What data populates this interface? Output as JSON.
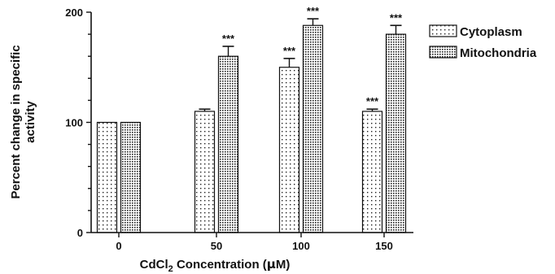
{
  "chart_data": {
    "type": "bar",
    "categories": [
      "0",
      "50",
      "100",
      "150"
    ],
    "series": [
      {
        "name": "Cytoplasm",
        "values": [
          100,
          110,
          150,
          110
        ],
        "errors": [
          0,
          2,
          8,
          2
        ],
        "significance": [
          "",
          "",
          "***",
          "***"
        ]
      },
      {
        "name": "Mitochondria",
        "values": [
          100,
          160,
          188,
          180
        ],
        "errors": [
          0,
          9,
          6,
          8
        ],
        "significance": [
          "",
          "***",
          "***",
          "***"
        ]
      }
    ],
    "ylabel_line1": "Percent change in specific",
    "ylabel_line2": "activity",
    "xlabel_main": "CdCl",
    "xlabel_sub": "2",
    "xlabel_rest": " Concentration (",
    "xlabel_mu": "μ",
    "xlabel_end": "M)",
    "ylim": [
      0,
      200
    ],
    "yticks": [
      0,
      100,
      200
    ],
    "legend_position": "top-right",
    "grid": false,
    "patterns": [
      "sparse-dots",
      "dense-dots"
    ],
    "colors": {
      "ink": "#111111",
      "background": "#ffffff"
    }
  }
}
